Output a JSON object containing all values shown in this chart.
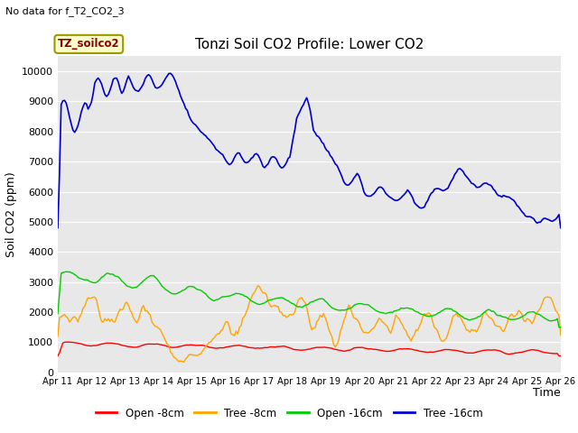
{
  "title": "Tonzi Soil CO2 Profile: Lower CO2",
  "subtitle": "No data for f_T2_CO2_3",
  "xlabel": "Time",
  "ylabel": "Soil CO2 (ppm)",
  "annotation": "TZ_soilco2",
  "ylim": [
    0,
    10500
  ],
  "yticks": [
    0,
    1000,
    2000,
    3000,
    4000,
    5000,
    6000,
    7000,
    8000,
    9000,
    10000
  ],
  "xtick_labels": [
    "Apr 11",
    "Apr 12",
    "Apr 13",
    "Apr 14",
    "Apr 15",
    "Apr 16",
    "Apr 17",
    "Apr 18",
    "Apr 19",
    "Apr 20",
    "Apr 21",
    "Apr 22",
    "Apr 23",
    "Apr 24",
    "Apr 25",
    "Apr 26"
  ],
  "legend_labels": [
    "Open -8cm",
    "Tree -8cm",
    "Open -16cm",
    "Tree -16cm"
  ],
  "legend_colors": [
    "#ff0000",
    "#ffa500",
    "#00cc00",
    "#0000cc"
  ],
  "bg_color": "#e8e8e8",
  "line_colors": {
    "open_8cm": "#ff0000",
    "tree_8cm": "#ffa500",
    "open_16cm": "#00cc00",
    "tree_16cm": "#0000cc"
  }
}
